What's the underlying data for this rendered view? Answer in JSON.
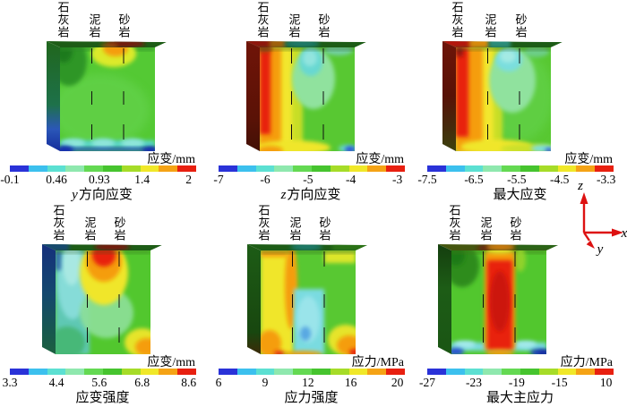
{
  "figure": {
    "rock_labels": [
      "石灰岩",
      "泥岩",
      "砂岩"
    ],
    "colorbar_colors": [
      "#2a32d8",
      "#3cc0ee",
      "#5ce0d2",
      "#8fe8ae",
      "#64d952",
      "#46c42e",
      "#a6dc28",
      "#f0e829",
      "#f5a315",
      "#e82010"
    ],
    "axis_indicator": {
      "x_label": "x",
      "y_label": "y",
      "z_label": "z",
      "color": "#dd1111"
    },
    "panels": [
      {
        "caption_italic": "y",
        "caption_text": "方向应变"
      },
      {
        "caption_italic": "z",
        "caption_text": "方向应变"
      },
      {
        "caption_italic": "",
        "caption_text": "最大应变"
      },
      {
        "caption_italic": "",
        "caption_text": "应变强度"
      },
      {
        "caption_italic": "",
        "caption_text": "应力强度"
      },
      {
        "caption_italic": "",
        "caption_text": "最大主应力"
      }
    ]
  },
  "chart_data": [
    {
      "type": "heatmap",
      "title": "y方向应变",
      "colorbar_label": "应变/mm",
      "colorbar_ticks": [
        -0.1,
        0.46,
        0.93,
        1.4,
        2
      ],
      "value_range": [
        -0.1,
        2
      ],
      "columns": [
        "石灰岩",
        "泥岩",
        "砂岩"
      ],
      "legend_position": "bottom",
      "pattern": "整体绿色，泥岩与砂岩交界顶部为橙黄色高值区，底部有青色与蓝色低值条带"
    },
    {
      "type": "heatmap",
      "title": "z方向应变",
      "colorbar_label": "应变/mm",
      "colorbar_ticks": [
        -7,
        -6,
        -5,
        -4,
        -3
      ],
      "value_range": [
        -7,
        -3
      ],
      "columns": [
        "石灰岩",
        "泥岩",
        "砂岩"
      ],
      "legend_position": "bottom",
      "pattern": "石灰岩柱左缘红色，向右经橙黄过渡为绿色，泥岩顶部青色低值斑块，底部黄橙色带"
    },
    {
      "type": "heatmap",
      "title": "最大应变",
      "colorbar_label": "应变/mm",
      "colorbar_ticks": [
        -7.5,
        -6.5,
        -5.5,
        -4.5,
        -3.3
      ],
      "value_range": [
        -7.5,
        -3.3
      ],
      "columns": [
        "石灰岩",
        "泥岩",
        "砂岩"
      ],
      "legend_position": "bottom",
      "pattern": "与z方向应变相似：左侧红橙高值带，泥岩顶部青色斑块，右下角有青蓝色小区"
    },
    {
      "type": "heatmap",
      "title": "应变强度",
      "colorbar_label": "应变/mm",
      "colorbar_ticks": [
        3.3,
        4.4,
        5.6,
        6.8,
        8.6
      ],
      "value_range": [
        3.3,
        8.6
      ],
      "columns": [
        "石灰岩",
        "泥岩",
        "砂岩"
      ],
      "legend_position": "bottom",
      "pattern": "石灰岩柱青色低值，泥岩顶部红色高值斑块并向下渐变为橙黄绿，砂岩右下角橙色"
    },
    {
      "type": "heatmap",
      "title": "应力强度",
      "colorbar_label": "应力/MPa",
      "colorbar_ticks": [
        6,
        9,
        12,
        16,
        20
      ],
      "value_range": [
        6,
        20
      ],
      "columns": [
        "石灰岩",
        "泥岩",
        "砂岩"
      ],
      "legend_position": "bottom",
      "pattern": "石灰岩柱黄橙色，泥岩柱上绿下青色低值，砂岩柱黄绿色且右下角橙红色高值"
    },
    {
      "type": "heatmap",
      "title": "最大主应力",
      "colorbar_label": "应力/MPa",
      "colorbar_ticks": [
        -27,
        -23,
        -19,
        -15,
        10
      ],
      "value_range": [
        -27,
        10
      ],
      "columns": [
        "石灰岩",
        "泥岩",
        "砂岩"
      ],
      "legend_position": "bottom",
      "pattern": "泥岩柱整体红色高值、顶部橙黄，两侧石灰岩与砂岩绿色，底部青蓝色条带"
    }
  ]
}
